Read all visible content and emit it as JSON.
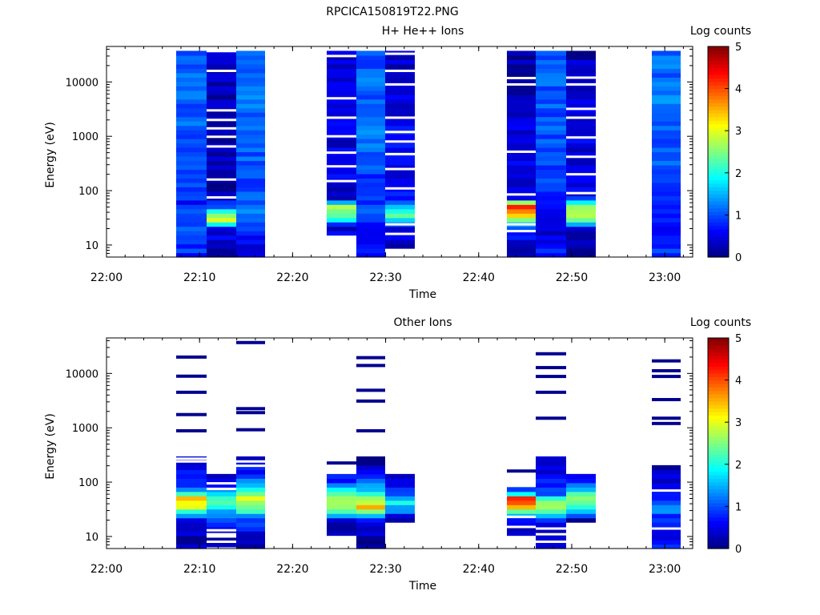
{
  "page_title": "RPCICA150819T22.PNG",
  "chart_data": [
    {
      "type": "heatmap",
      "title": "H+ He++ Ions",
      "xlabel": "Time",
      "ylabel": "Energy (eV)",
      "colorbar_label": "Log counts",
      "x_scale": "time",
      "y_scale": "log",
      "xlim": [
        "22:00",
        "23:03"
      ],
      "ylim": [
        6,
        45000
      ],
      "x_ticks": [
        "22:00",
        "22:10",
        "22:20",
        "22:30",
        "22:40",
        "22:50",
        "23:00"
      ],
      "y_ticks": [
        "10",
        "100",
        "1000",
        "10000"
      ],
      "color_range": [
        0,
        5
      ],
      "color_ticks": [
        "0",
        "1",
        "2",
        "3",
        "4",
        "5"
      ],
      "colormap": "jet",
      "columns": [
        {
          "start": "22:07:30",
          "end": "22:10:45",
          "spectrum": [
            [
              6,
              0.8
            ],
            [
              10,
              0.9
            ],
            [
              20,
              1.1
            ],
            [
              30,
              1.0
            ],
            [
              60,
              0.7
            ],
            [
              150,
              0.9
            ],
            [
              400,
              1.0
            ],
            [
              1000,
              1.1
            ],
            [
              3000,
              1.0
            ],
            [
              10000,
              1.1
            ],
            [
              40000,
              1.0
            ]
          ],
          "gaps": []
        },
        {
          "start": "22:10:45",
          "end": "22:13:55",
          "spectrum": [
            [
              6,
              0.3
            ],
            [
              10,
              0.35
            ],
            [
              20,
              0.6
            ],
            [
              28,
              2.8
            ],
            [
              38,
              2.6
            ],
            [
              50,
              0.9
            ],
            [
              80,
              0.3
            ],
            [
              200,
              0.2
            ],
            [
              1000,
              0.25
            ],
            [
              10000,
              0.3
            ],
            [
              40000,
              0.3
            ]
          ],
          "gaps": [
            75,
            160,
            650,
            980,
            1400,
            2000,
            3000,
            16000,
            37000
          ]
        },
        {
          "start": "22:13:55",
          "end": "22:17:05",
          "spectrum": [
            [
              6,
              0.2
            ],
            [
              12,
              0.6
            ],
            [
              25,
              1.1
            ],
            [
              40,
              1.2
            ],
            [
              100,
              0.9
            ],
            [
              300,
              1.0
            ],
            [
              1000,
              1.1
            ],
            [
              5000,
              1.2
            ],
            [
              20000,
              1.1
            ],
            [
              40000,
              1.1
            ]
          ],
          "gaps": []
        },
        {
          "start": "22:23:40",
          "end": "22:26:50",
          "spectrum": [
            [
              14,
              0.4
            ],
            [
              22,
              0.5
            ],
            [
              35,
              2.5
            ],
            [
              55,
              2.6
            ],
            [
              70,
              0.2
            ],
            [
              120,
              0.4
            ],
            [
              300,
              0.6
            ],
            [
              800,
              0.4
            ],
            [
              3000,
              0.5
            ],
            [
              10000,
              0.4
            ],
            [
              40000,
              0.3
            ]
          ],
          "gaps": [
            150,
            280,
            500,
            1000,
            2200,
            5000,
            30000
          ]
        },
        {
          "start": "22:26:50",
          "end": "22:29:55",
          "spectrum": [
            [
              6,
              0.5
            ],
            [
              10,
              0.7
            ],
            [
              20,
              0.7
            ],
            [
              40,
              1.0
            ],
            [
              100,
              0.8
            ],
            [
              300,
              1.0
            ],
            [
              1000,
              1.2
            ],
            [
              3000,
              1.1
            ],
            [
              10000,
              1.1
            ],
            [
              40000,
              1.0
            ]
          ],
          "gaps": []
        },
        {
          "start": "22:29:55",
          "end": "22:33:10",
          "spectrum": [
            [
              8,
              0.2
            ],
            [
              14,
              0.4
            ],
            [
              20,
              0.5
            ],
            [
              28,
              1.5
            ],
            [
              38,
              2.4
            ],
            [
              50,
              1.4
            ],
            [
              80,
              0.6
            ],
            [
              200,
              0.5
            ],
            [
              1000,
              0.6
            ],
            [
              10000,
              0.4
            ],
            [
              40000,
              0.3
            ]
          ],
          "gaps": [
            16,
            24,
            110,
            250,
            470,
            800,
            1200,
            2200,
            9000,
            16000,
            33000
          ]
        },
        {
          "start": "22:43:00",
          "end": "22:46:10",
          "spectrum": [
            [
              6,
              0.3
            ],
            [
              12,
              0.4
            ],
            [
              25,
              1.2
            ],
            [
              32,
              3.0
            ],
            [
              40,
              3.8
            ],
            [
              55,
              4.2
            ],
            [
              70,
              0.3
            ],
            [
              150,
              0.4
            ],
            [
              500,
              0.5
            ],
            [
              2000,
              0.4
            ],
            [
              10000,
              0.3
            ],
            [
              40000,
              0.1
            ]
          ],
          "gaps": [
            18,
            24,
            85,
            520,
            9000,
            11800
          ]
        },
        {
          "start": "22:46:10",
          "end": "22:49:25",
          "spectrum": [
            [
              6,
              0.6
            ],
            [
              10,
              0.7
            ],
            [
              15,
              0.4
            ],
            [
              20,
              0.5
            ],
            [
              40,
              0.6
            ],
            [
              100,
              0.8
            ],
            [
              300,
              0.9
            ],
            [
              1000,
              1.0
            ],
            [
              3000,
              1.0
            ],
            [
              10000,
              1.1
            ],
            [
              40000,
              1.0
            ]
          ],
          "gaps": []
        },
        {
          "start": "22:49:25",
          "end": "22:52:35",
          "spectrum": [
            [
              6,
              0.2
            ],
            [
              20,
              0.4
            ],
            [
              30,
              2.6
            ],
            [
              45,
              3.0
            ],
            [
              60,
              2.2
            ],
            [
              80,
              0.5
            ],
            [
              150,
              0.4
            ],
            [
              500,
              0.5
            ],
            [
              2000,
              0.4
            ],
            [
              10000,
              0.4
            ],
            [
              40000,
              0.2
            ]
          ],
          "gaps": [
            90,
            200,
            420,
            950,
            2200,
            3200,
            9000,
            12000
          ]
        },
        {
          "start": "22:58:35",
          "end": "23:01:45",
          "spectrum": [
            [
              6,
              0.8
            ],
            [
              10,
              0.9
            ],
            [
              15,
              0.6
            ],
            [
              25,
              0.8
            ],
            [
              50,
              0.9
            ],
            [
              150,
              0.9
            ],
            [
              500,
              1.1
            ],
            [
              2000,
              1.1
            ],
            [
              6000,
              1.2
            ],
            [
              40000,
              1.1
            ]
          ],
          "gaps": []
        }
      ]
    },
    {
      "type": "heatmap",
      "title": "Other Ions",
      "xlabel": "Time",
      "ylabel": "Energy (eV)",
      "colorbar_label": "Log counts",
      "x_scale": "time",
      "y_scale": "log",
      "xlim": [
        "22:00",
        "23:03"
      ],
      "ylim": [
        6,
        45000
      ],
      "x_ticks": [
        "22:00",
        "22:10",
        "22:20",
        "22:30",
        "22:40",
        "22:50",
        "23:00"
      ],
      "y_ticks": [
        "10",
        "100",
        "1000",
        "10000"
      ],
      "color_range": [
        0,
        5
      ],
      "color_ticks": [
        "0",
        "1",
        "2",
        "3",
        "4",
        "5"
      ],
      "colormap": "jet",
      "columns": [
        {
          "start": "22:07:30",
          "end": "22:10:45",
          "spectrum": [
            [
              6,
              0.2
            ],
            [
              10,
              0.3
            ],
            [
              20,
              0.6
            ],
            [
              35,
              3.0
            ],
            [
              50,
              3.4
            ],
            [
              80,
              1.0
            ],
            [
              150,
              0.7
            ],
            [
              300,
              0.3
            ]
          ],
          "gaps": [
            240,
            270
          ],
          "lines": [
            880,
            1750,
            4500,
            8900,
            20000
          ]
        },
        {
          "start": "22:10:45",
          "end": "22:13:55",
          "spectrum": [
            [
              6,
              0.2
            ],
            [
              10,
              0.3
            ],
            [
              20,
              0.8
            ],
            [
              30,
              1.6
            ],
            [
              45,
              2.2
            ],
            [
              60,
              2.0
            ],
            [
              90,
              0.4
            ],
            [
              140,
              0.1
            ]
          ],
          "gaps": [
            6,
            8,
            10,
            11,
            13,
            75,
            95
          ],
          "lines": []
        },
        {
          "start": "22:13:55",
          "end": "22:17:05",
          "spectrum": [
            [
              6,
              0.2
            ],
            [
              10,
              0.3
            ],
            [
              20,
              1.0
            ],
            [
              35,
              2.4
            ],
            [
              50,
              3.0
            ],
            [
              80,
              1.8
            ],
            [
              150,
              0.8
            ],
            [
              300,
              0.3
            ]
          ],
          "gaps": [
            200,
            240
          ],
          "lines": [
            920,
            1900,
            2250,
            37000
          ]
        },
        {
          "start": "22:23:40",
          "end": "22:26:50",
          "spectrum": [
            [
              10,
              0.2
            ],
            [
              20,
              0.3
            ],
            [
              30,
              2.5
            ],
            [
              40,
              2.8
            ],
            [
              60,
              2.4
            ],
            [
              100,
              0.8
            ],
            [
              135,
              0.6
            ]
          ],
          "gaps": [
            150,
            200
          ],
          "lines": [
            225
          ]
        },
        {
          "start": "22:26:50",
          "end": "22:29:55",
          "spectrum": [
            [
              6,
              0.1
            ],
            [
              10,
              0.2
            ],
            [
              20,
              0.5
            ],
            [
              35,
              3.3
            ],
            [
              50,
              2.6
            ],
            [
              80,
              1.5
            ],
            [
              150,
              0.5
            ],
            [
              280,
              0.1
            ]
          ],
          "gaps": [],
          "lines": [
            880,
            3100,
            4900,
            14000,
            19500
          ]
        },
        {
          "start": "22:29:55",
          "end": "22:33:10",
          "spectrum": [
            [
              20,
              0.2
            ],
            [
              30,
              1.2
            ],
            [
              40,
              2.0
            ],
            [
              60,
              1.0
            ],
            [
              100,
              0.6
            ],
            [
              140,
              0.3
            ]
          ],
          "gaps": [],
          "lines": []
        },
        {
          "start": "22:43:00",
          "end": "22:46:10",
          "spectrum": [
            [
              10,
              0.2
            ],
            [
              20,
              0.5
            ],
            [
              35,
              3.6
            ],
            [
              50,
              4.3
            ],
            [
              65,
              1.3
            ],
            [
              80,
              0.3
            ]
          ],
          "gaps": [
            15,
            23,
            100,
            130
          ],
          "lines": [
            160
          ]
        },
        {
          "start": "22:46:10",
          "end": "22:49:25",
          "spectrum": [
            [
              6,
              0.2
            ],
            [
              10,
              0.3
            ],
            [
              20,
              0.8
            ],
            [
              30,
              2.2
            ],
            [
              40,
              3.0
            ],
            [
              60,
              1.2
            ],
            [
              150,
              0.5
            ],
            [
              300,
              0.1
            ]
          ],
          "gaps": [
            8,
            11,
            14
          ],
          "lines": [
            1500,
            4500,
            8800,
            12800,
            23000
          ]
        },
        {
          "start": "22:49:25",
          "end": "22:52:35",
          "spectrum": [
            [
              20,
              0.3
            ],
            [
              30,
              1.5
            ],
            [
              45,
              2.8
            ],
            [
              70,
              1.8
            ],
            [
              110,
              0.6
            ],
            [
              140,
              0.3
            ]
          ],
          "gaps": [],
          "lines": []
        },
        {
          "start": "22:58:35",
          "end": "23:01:45",
          "spectrum": [
            [
              6,
              0.8
            ],
            [
              10,
              0.3
            ],
            [
              18,
              0.6
            ],
            [
              30,
              1.2
            ],
            [
              50,
              0.9
            ],
            [
              100,
              0.5
            ],
            [
              200,
              0.3
            ]
          ],
          "gaps": [
            14,
            70
          ],
          "lines": [
            1200,
            1500,
            3300,
            8800,
            11200,
            17000
          ]
        }
      ]
    }
  ]
}
